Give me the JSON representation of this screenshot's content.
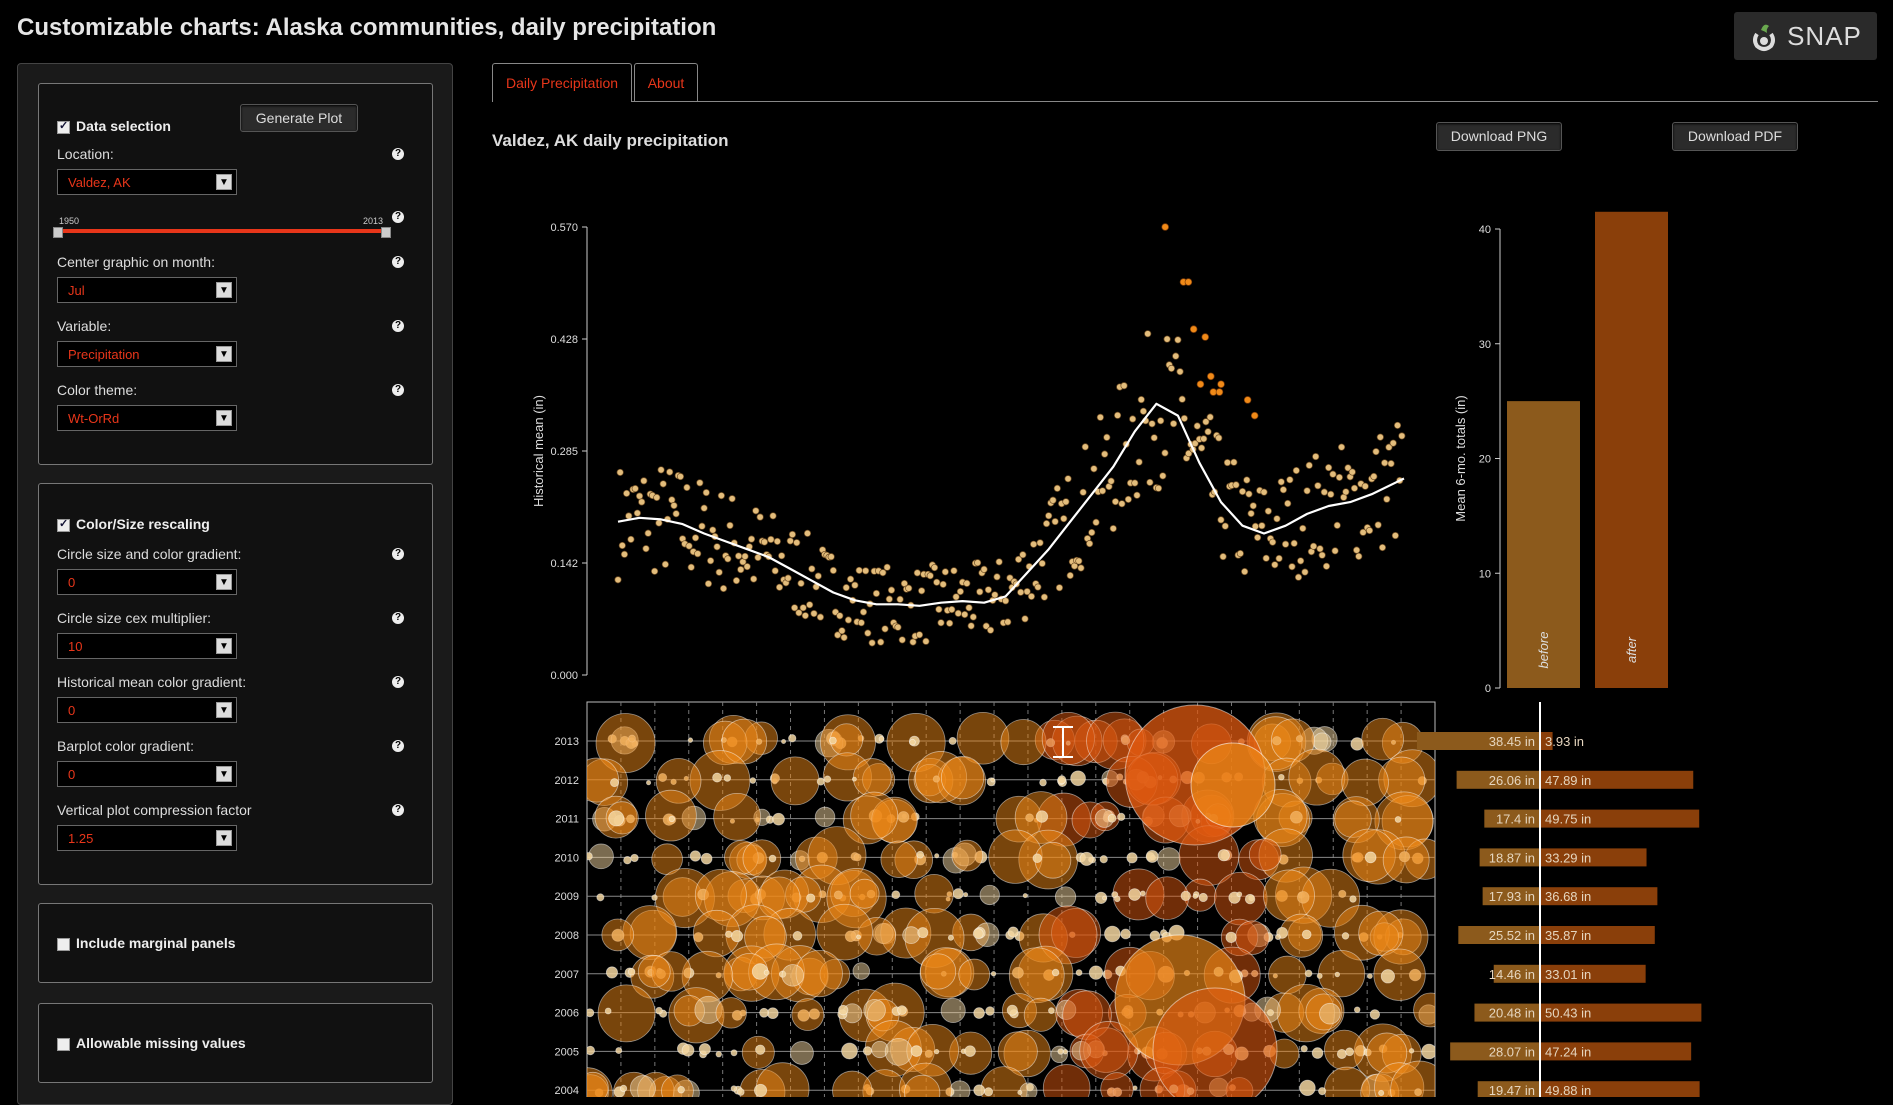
{
  "header": {
    "title": "Customizable charts: Alaska communities, daily precipitation",
    "logo_text": "SNAP"
  },
  "sidebar": {
    "data_selection": {
      "heading": "Data selection",
      "generate_label": "Generate Plot",
      "location_label": "Location:",
      "location_value": "Valdez, AK",
      "year_min": "1950",
      "year_max": "2013",
      "month_label": "Center graphic on month:",
      "month_value": "Jul",
      "variable_label": "Variable:",
      "variable_value": "Precipitation",
      "theme_label": "Color theme:",
      "theme_value": "Wt-OrRd"
    },
    "rescaling": {
      "heading": "Color/Size rescaling",
      "circle_gradient_label": "Circle size and color gradient:",
      "circle_gradient_value": "0",
      "cex_label": "Circle size cex multiplier:",
      "cex_value": "10",
      "hist_gradient_label": "Historical mean color gradient:",
      "hist_gradient_value": "0",
      "barplot_gradient_label": "Barplot color gradient:",
      "barplot_gradient_value": "0",
      "compression_label": "Vertical plot compression factor",
      "compression_value": "1.25"
    },
    "marginal": {
      "label": "Include marginal panels"
    },
    "missing": {
      "label": "Allowable missing values"
    }
  },
  "tabs": [
    {
      "label": "Daily Precipitation"
    },
    {
      "label": "About"
    }
  ],
  "main": {
    "plot_title": "Valdez, AK daily precipitation",
    "download_png": "Download PNG",
    "download_pdf": "Download PDF"
  },
  "colors": {
    "accent": "#e8361a",
    "bar_before": "#8c5a1c",
    "bar_after": "#8a3f0a",
    "dot": "#e3bd7c",
    "bubble_orange": "#f08a18",
    "bubble_red": "#e05a10"
  },
  "chart_data": [
    {
      "type": "scatter",
      "ylabel": "Historical mean (in)",
      "ylim": [
        0,
        0.57
      ],
      "yticks": [
        "0.000",
        "0.142",
        "0.285",
        "0.428",
        "0.570"
      ],
      "x_day": [
        0,
        10,
        20,
        30,
        40,
        50,
        60,
        70,
        80,
        90,
        100,
        110,
        120,
        130,
        140,
        150,
        160,
        170,
        180,
        190,
        200,
        210,
        220,
        230,
        240,
        250,
        260,
        270,
        280,
        290,
        300,
        310,
        320,
        330,
        340,
        350,
        365
      ],
      "smooth_mean": [
        0.195,
        0.2,
        0.198,
        0.192,
        0.18,
        0.17,
        0.16,
        0.15,
        0.135,
        0.12,
        0.105,
        0.095,
        0.09,
        0.09,
        0.088,
        0.092,
        0.094,
        0.092,
        0.1,
        0.13,
        0.16,
        0.195,
        0.23,
        0.265,
        0.31,
        0.345,
        0.33,
        0.27,
        0.22,
        0.19,
        0.18,
        0.19,
        0.205,
        0.215,
        0.22,
        0.23,
        0.25
      ],
      "outliers": [
        0.57,
        0.5,
        0.5,
        0.44,
        0.43,
        0.38,
        0.37,
        0.37,
        0.36,
        0.36,
        0.35,
        0.33
      ]
    },
    {
      "type": "bar",
      "ylabel": "Mean 6-mo. totals (in)",
      "categories": [
        "before",
        "after"
      ],
      "values": [
        25,
        41.5
      ],
      "ylim": [
        0,
        40
      ],
      "yticks": [
        "0",
        "10",
        "20",
        "30",
        "40"
      ]
    },
    {
      "type": "table",
      "years": [
        "2013",
        "2012",
        "2011",
        "2010",
        "2009",
        "2008",
        "2007",
        "2006",
        "2005",
        "2004"
      ],
      "before": [
        "38.45 in",
        "26.06 in",
        "17.4 in",
        "18.87 in",
        "17.93 in",
        "25.52 in",
        "14.46 in",
        "20.48 in",
        "28.07 in",
        "19.47 in"
      ],
      "after": [
        "3.93 in",
        "47.89 in",
        "49.75 in",
        "33.29 in",
        "36.68 in",
        "35.87 in",
        "33.01 in",
        "50.43 in",
        "47.24 in",
        "49.88 in"
      ],
      "before_values": [
        38.45,
        26.06,
        17.4,
        18.87,
        17.93,
        25.52,
        14.46,
        20.48,
        28.07,
        19.47
      ],
      "after_values": [
        3.93,
        47.89,
        49.75,
        33.29,
        36.68,
        35.87,
        33.01,
        50.43,
        47.24,
        49.88
      ]
    }
  ]
}
